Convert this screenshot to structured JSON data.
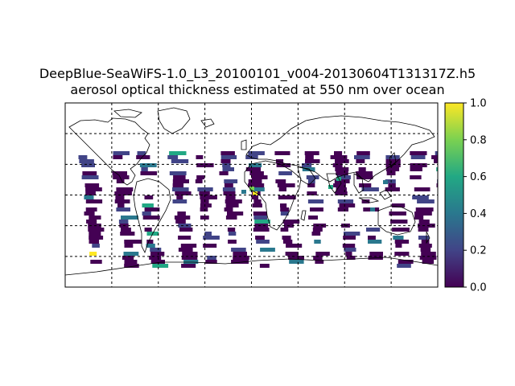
{
  "figure": {
    "title_line1": "DeepBlue-SeaWiFS-1.0_L3_20100101_v004-20130604T131317Z.h5",
    "title_line2": "aerosol optical thickness estimated at 550 nm over ocean"
  },
  "map": {
    "projection": "cylindrical",
    "lon_range": [
      -180,
      180
    ],
    "lat_range": [
      -90,
      90
    ],
    "graticule": "dashed",
    "coastlines": true,
    "colormap": "viridis",
    "value_range": [
      0.0,
      1.0
    ]
  },
  "colorbar": {
    "ticks": [
      "0.0",
      "0.2",
      "0.4",
      "0.6",
      "0.8",
      "1.0"
    ],
    "tick_values": [
      0.0,
      0.2,
      0.4,
      0.6,
      0.8,
      1.0
    ],
    "colors": [
      "#440154",
      "#414487",
      "#2a788e",
      "#22a884",
      "#7ad151",
      "#fde725"
    ]
  }
}
